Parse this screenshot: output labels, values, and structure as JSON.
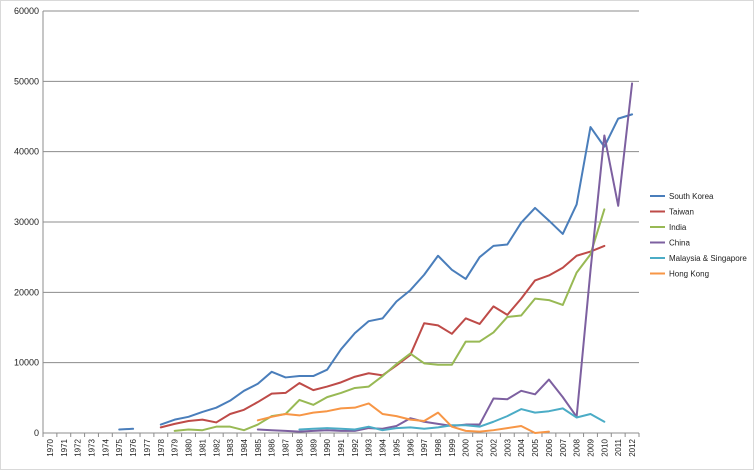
{
  "chart_data": {
    "type": "line",
    "ylim": [
      0,
      60000
    ],
    "y_ticks": [
      "0",
      "10000",
      "20000",
      "30000",
      "40000",
      "50000",
      "60000"
    ],
    "grid": "horizontal",
    "legend_position": "right",
    "x": [
      "1970",
      "1971",
      "1972",
      "1973",
      "1974",
      "1975",
      "1976",
      "1977",
      "1978",
      "1979",
      "1980",
      "1981",
      "1982",
      "1983",
      "1984",
      "1985",
      "1986",
      "1987",
      "1988",
      "1989",
      "1990",
      "1991",
      "1992",
      "1993",
      "1994",
      "1995",
      "1996",
      "1997",
      "1998",
      "1999",
      "2000",
      "2001",
      "2002",
      "2003",
      "2004",
      "2005",
      "2006",
      "2007",
      "2008",
      "2009",
      "2010",
      "2011",
      "2012"
    ],
    "series": [
      {
        "name": "South Korea",
        "color": "#4a7ebb",
        "values": [
          null,
          null,
          null,
          null,
          null,
          500,
          600,
          null,
          1200,
          1900,
          2300,
          3000,
          3600,
          4600,
          6000,
          7000,
          8700,
          7900,
          8100,
          8100,
          9000,
          11900,
          14200,
          15900,
          16300,
          18700,
          20300,
          22500,
          25200,
          23200,
          21900,
          25000,
          26600,
          26800,
          29900,
          32000,
          30200,
          28300,
          32500,
          43500,
          40700,
          44700,
          45300
        ]
      },
      {
        "name": "Taiwan",
        "color": "#be4b48",
        "values": [
          null,
          null,
          null,
          null,
          null,
          200,
          null,
          null,
          800,
          1300,
          1700,
          1900,
          1500,
          2700,
          3300,
          4400,
          5600,
          5700,
          7100,
          6100,
          6600,
          7200,
          8000,
          8500,
          8200,
          9600,
          11100,
          15600,
          15300,
          14100,
          16300,
          15500,
          18000,
          16800,
          19100,
          21700,
          22400,
          23500,
          25200,
          25800,
          26600,
          null,
          null
        ]
      },
      {
        "name": "India",
        "color": "#98b954",
        "values": [
          null,
          null,
          null,
          null,
          null,
          null,
          null,
          null,
          null,
          300,
          500,
          400,
          900,
          900,
          400,
          1200,
          2400,
          2700,
          4700,
          4000,
          5100,
          5700,
          6400,
          6600,
          8100,
          9800,
          11300,
          9900,
          9700,
          9700,
          13000,
          13000,
          14300,
          16500,
          16700,
          19100,
          18900,
          18200,
          22800,
          25400,
          31800,
          null,
          null
        ]
      },
      {
        "name": "China",
        "color": "#7d60a0",
        "values": [
          null,
          null,
          null,
          null,
          null,
          null,
          null,
          null,
          null,
          null,
          null,
          null,
          null,
          null,
          null,
          500,
          400,
          300,
          200,
          300,
          400,
          300,
          300,
          700,
          600,
          1000,
          2100,
          1600,
          1300,
          1000,
          1200,
          1200,
          4900,
          4800,
          6000,
          5500,
          7600,
          5100,
          2300,
          23100,
          42300,
          32300,
          49700
        ]
      },
      {
        "name": "Malaysia & Singapore",
        "color": "#4bacc6",
        "values": [
          null,
          null,
          null,
          null,
          null,
          null,
          null,
          null,
          null,
          null,
          null,
          null,
          null,
          null,
          null,
          null,
          null,
          null,
          500,
          600,
          700,
          600,
          500,
          900,
          400,
          700,
          800,
          600,
          800,
          1100,
          1100,
          900,
          1600,
          2400,
          3400,
          2900,
          3100,
          3500,
          2200,
          2700,
          1600,
          null,
          null
        ]
      },
      {
        "name": "Hong Kong",
        "color": "#f79646",
        "values": [
          null,
          null,
          null,
          null,
          null,
          null,
          null,
          null,
          null,
          null,
          null,
          null,
          null,
          null,
          null,
          1800,
          2300,
          2700,
          2500,
          2900,
          3100,
          3500,
          3600,
          4200,
          2700,
          2400,
          1900,
          1700,
          2900,
          900,
          300,
          200,
          400,
          700,
          1000,
          0,
          200,
          null,
          null,
          null,
          null,
          null,
          null
        ]
      }
    ]
  }
}
